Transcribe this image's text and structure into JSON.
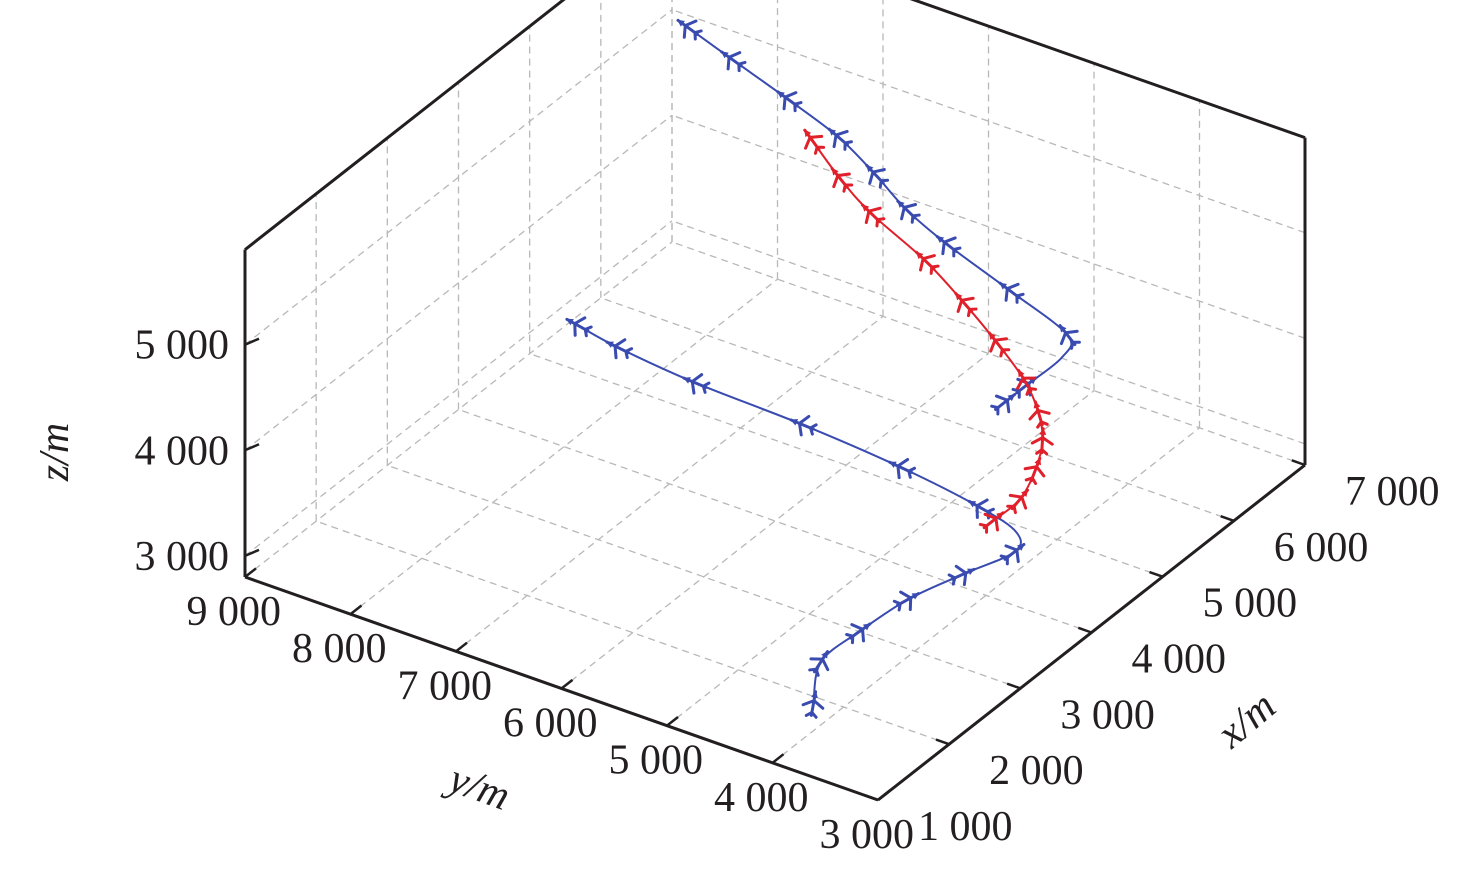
{
  "chart_data": {
    "type": "line",
    "subtype": "3d-trajectory",
    "xlabel": "x/m",
    "ylabel": "y/m",
    "zlabel": "z/m",
    "xlim": [
      1000,
      7000
    ],
    "ylim": [
      3000,
      9000
    ],
    "zlim": [
      2800,
      5900
    ],
    "x_ticks": [
      1000,
      2000,
      3000,
      4000,
      5000,
      6000,
      7000
    ],
    "y_ticks": [
      3000,
      4000,
      5000,
      6000,
      7000,
      8000,
      9000
    ],
    "z_ticks": [
      3000,
      4000,
      5000
    ],
    "x_tick_labels": [
      "1 000",
      "2 000",
      "3 000",
      "4 000",
      "5 000",
      "6 000",
      "7 000"
    ],
    "y_tick_labels": [
      "3 000",
      "4 000",
      "5 000",
      "6 000",
      "7 000",
      "8 000",
      "9 000"
    ],
    "z_tick_labels": [
      "3 000",
      "4 000",
      "5 000"
    ],
    "grid": true,
    "marker": "aircraft",
    "colors": {
      "blue": "#3a4bb0",
      "red": "#e0202a",
      "navy": "#1c1a55",
      "axis": "#231f20",
      "grid": "#b8b8b8"
    },
    "series": [
      {
        "color": "blue",
        "points": [
          {
            "x": 1650,
            "y": 4050,
            "z": 3000
          },
          {
            "x": 2200,
            "y": 4350,
            "z": 3000
          },
          {
            "x": 2750,
            "y": 4350,
            "z": 3000
          },
          {
            "x": 3350,
            "y": 4300,
            "z": 3000
          },
          {
            "x": 3900,
            "y": 4150,
            "z": 3000
          },
          {
            "x": 4400,
            "y": 4000,
            "z": 3000
          },
          {
            "x": 4650,
            "y": 4150,
            "z": 3000
          },
          {
            "x": 4800,
            "y": 4600,
            "z": 3000
          },
          {
            "x": 4950,
            "y": 5450,
            "z": 3000
          },
          {
            "x": 5050,
            "y": 6450,
            "z": 3000
          },
          {
            "x": 5100,
            "y": 7500,
            "z": 3000
          },
          {
            "x": 5200,
            "y": 8300,
            "z": 3000
          },
          {
            "x": 5300,
            "y": 8750,
            "z": 3000
          }
        ],
        "marker_indices": [
          0,
          1,
          2,
          3,
          4,
          5,
          7,
          8,
          9,
          10,
          11,
          12
        ]
      },
      {
        "color": "blue",
        "points": [
          {
            "x": 3600,
            "y": 3550,
            "z": 5000
          },
          {
            "x": 3900,
            "y": 3550,
            "z": 5000
          },
          {
            "x": 4400,
            "y": 3550,
            "z": 5000
          },
          {
            "x": 4700,
            "y": 3700,
            "z": 5000
          },
          {
            "x": 5000,
            "y": 4450,
            "z": 5000
          },
          {
            "x": 5300,
            "y": 5250,
            "z": 5000
          },
          {
            "x": 5550,
            "y": 5800,
            "z": 5000
          },
          {
            "x": 5850,
            "y": 6300,
            "z": 5000
          },
          {
            "x": 6150,
            "y": 6850,
            "z": 5000
          },
          {
            "x": 6400,
            "y": 7500,
            "z": 5000
          },
          {
            "x": 6650,
            "y": 8200,
            "z": 5000
          },
          {
            "x": 6850,
            "y": 8750,
            "z": 5000
          }
        ],
        "marker_indices": [
          0,
          1,
          3,
          4,
          5,
          6,
          7,
          8,
          9,
          10,
          11
        ]
      },
      {
        "color": "red",
        "points": [
          {
            "x": 4700,
            "y": 4400,
            "z": 3000
          },
          {
            "x": 4550,
            "y": 4050,
            "z": 3400
          },
          {
            "x": 4400,
            "y": 3800,
            "z": 3850
          },
          {
            "x": 4200,
            "y": 3600,
            "z": 4300
          },
          {
            "x": 4000,
            "y": 3500,
            "z": 4700
          },
          {
            "x": 3950,
            "y": 3600,
            "z": 5000
          },
          {
            "x": 4300,
            "y": 4100,
            "z": 5000
          },
          {
            "x": 4650,
            "y": 4650,
            "z": 5000
          },
          {
            "x": 5000,
            "y": 5250,
            "z": 5000
          },
          {
            "x": 5350,
            "y": 6000,
            "z": 5000
          },
          {
            "x": 5650,
            "y": 6500,
            "z": 5000
          },
          {
            "x": 6000,
            "y": 7000,
            "z": 5000
          }
        ],
        "marker_indices": [
          0,
          1,
          2,
          3,
          4,
          5,
          6,
          7,
          8,
          9,
          10,
          11
        ]
      }
    ]
  }
}
